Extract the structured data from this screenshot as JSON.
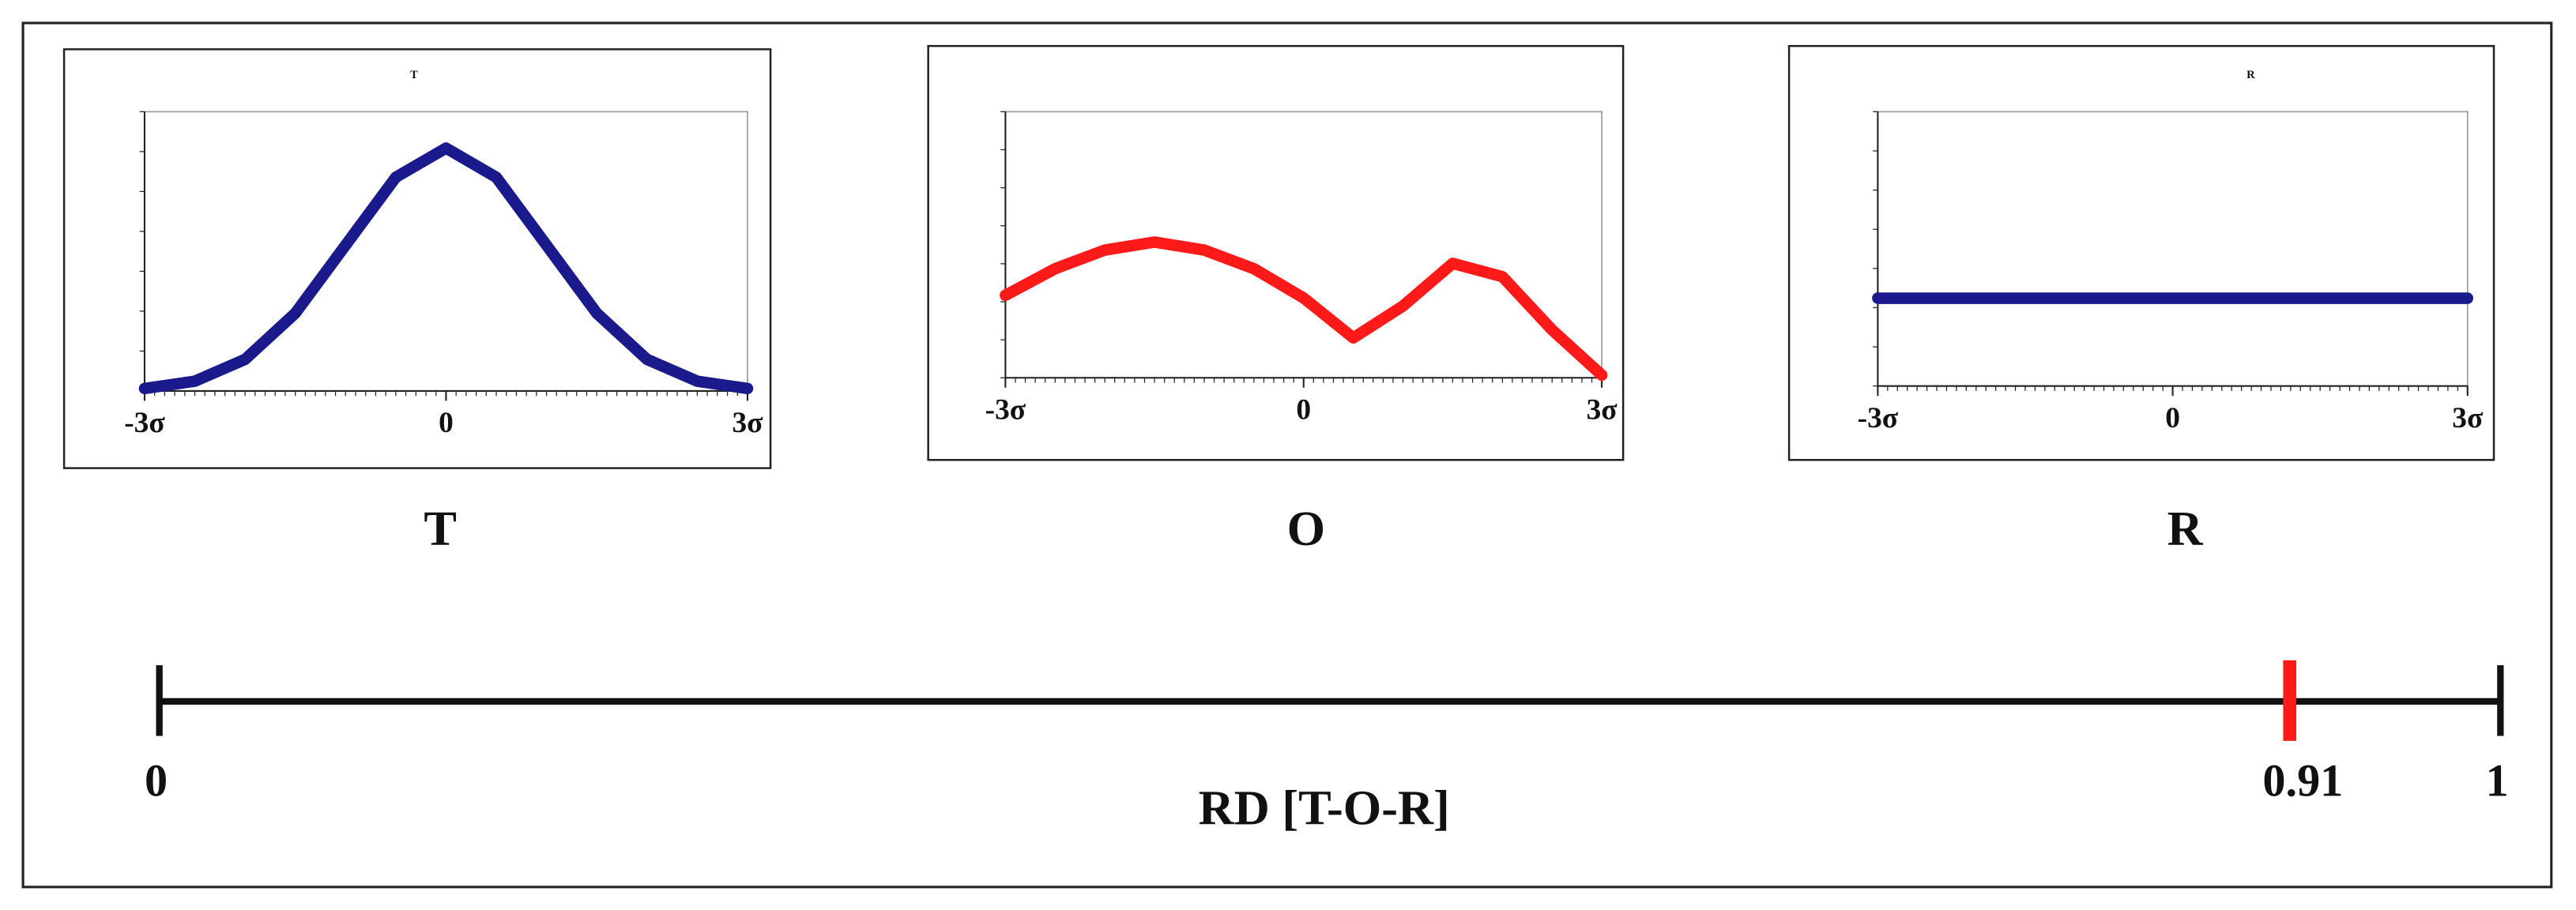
{
  "panels": [
    {
      "label": "T",
      "mini_title": "T",
      "color": "#1a1a8c",
      "ylim": [
        0,
        1.15
      ],
      "xlim": [
        -3,
        3
      ],
      "xticks": [
        {
          "value": -3,
          "label": "-3σ"
        },
        0,
        {
          "value": 3,
          "label": "3σ"
        }
      ],
      "x": [
        -3,
        -2.5,
        -2,
        -1.5,
        -1,
        -0.5,
        0,
        0.5,
        1,
        1.5,
        2,
        2.5,
        3
      ],
      "values": [
        0.01,
        0.04,
        0.13,
        0.32,
        0.6,
        0.88,
        1,
        0.88,
        0.6,
        0.32,
        0.13,
        0.04,
        0.01
      ]
    },
    {
      "label": "O",
      "color": "#ff1a1a",
      "ylim": [
        0,
        1
      ],
      "xlim": [
        -3,
        3
      ],
      "xticks": [
        {
          "value": -3,
          "label": "-3σ"
        },
        0,
        {
          "value": 3,
          "label": "3σ"
        }
      ],
      "x": [
        -3,
        -2.5,
        -2,
        -1.5,
        -1,
        -0.5,
        0,
        0.5,
        1,
        1.5,
        2,
        2.5,
        3
      ],
      "values": [
        0.31,
        0.41,
        0.48,
        0.51,
        0.48,
        0.41,
        0.3,
        0.15,
        0.27,
        0.43,
        0.38,
        0.18,
        0.01
      ]
    },
    {
      "label": "R",
      "mini_title": "R",
      "color": "#1a1a8c",
      "ylim": [
        0,
        1
      ],
      "xlim": [
        -3,
        3
      ],
      "xticks": [
        {
          "value": -3,
          "label": "-3σ"
        },
        0,
        {
          "value": 3,
          "label": "3σ"
        }
      ],
      "x": [
        -3,
        -2.5,
        -2,
        -1.5,
        -1,
        -0.5,
        0,
        0.5,
        1,
        1.5,
        2,
        2.5,
        3
      ],
      "values": [
        0.32,
        0.32,
        0.32,
        0.32,
        0.32,
        0.32,
        0.32,
        0.32,
        0.32,
        0.32,
        0.32,
        0.32,
        0.32
      ]
    }
  ],
  "scale": {
    "label": "RD [T-O-R]",
    "lim": [
      0,
      1
    ],
    "ticks": [
      0,
      1
    ],
    "marker": 0.91,
    "marker_color": "#ff1a1a"
  }
}
